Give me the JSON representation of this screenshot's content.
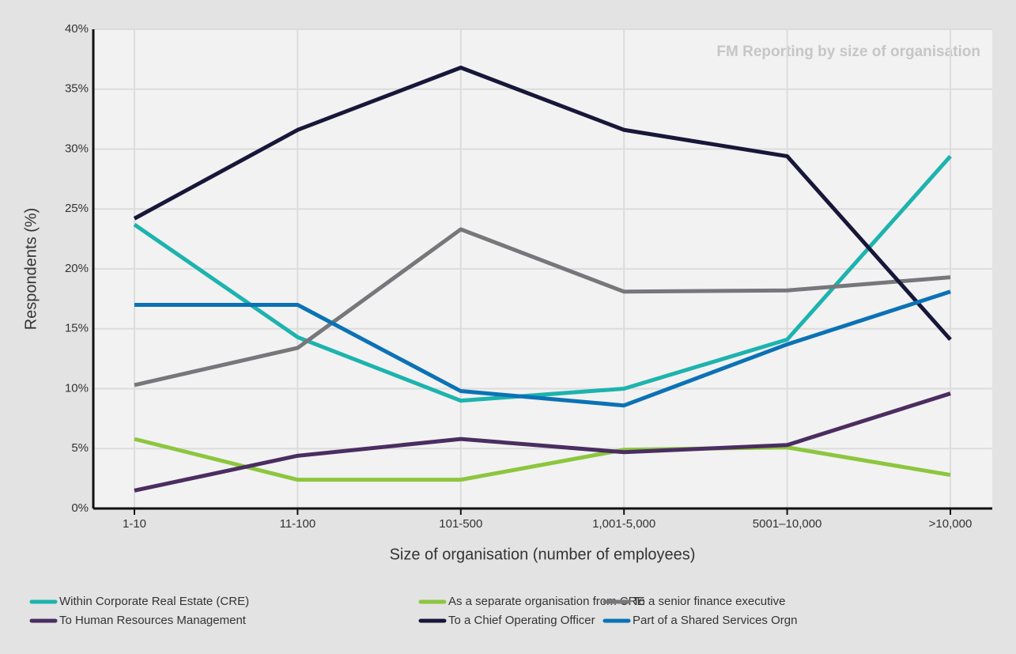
{
  "chart_data": {
    "type": "line",
    "title": "FM Reporting by size of organisation",
    "x_label": "Size of organisation (number of employees)",
    "y_label": "Respondents (%)",
    "categories": [
      "1-10",
      "11-100",
      "101-500",
      "1,001-5,000",
      "5001–10,000",
      ">10,000"
    ],
    "ylim": [
      0,
      40
    ],
    "yticks": [
      {
        "value": 0,
        "label": "0%"
      },
      {
        "value": 5,
        "label": "5%"
      },
      {
        "value": 10,
        "label": "10%"
      },
      {
        "value": 15,
        "label": "15%"
      },
      {
        "value": 20,
        "label": "20%"
      },
      {
        "value": 25,
        "label": "25%"
      },
      {
        "value": 30,
        "label": "30%"
      },
      {
        "value": 35,
        "label": "35%"
      },
      {
        "value": 40,
        "label": "40%"
      }
    ],
    "grid": true,
    "legend": "bottom",
    "series": [
      {
        "name": "Within Corporate Real Estate (CRE)",
        "color": "#1db3ae",
        "values": [
          23.7,
          14.3,
          9.0,
          10.0,
          14.1,
          29.4
        ]
      },
      {
        "name": "As a separate organisation from CRE",
        "color": "#8cc63e",
        "values": [
          5.8,
          2.4,
          2.4,
          4.9,
          5.1,
          2.8
        ]
      },
      {
        "name": "To a senior finance executive",
        "color": "#77777b",
        "values": [
          10.3,
          13.4,
          23.3,
          18.1,
          18.2,
          19.3
        ]
      },
      {
        "name": "To Human Resources Management",
        "color": "#4b2d61",
        "values": [
          1.5,
          4.4,
          5.8,
          4.7,
          5.3,
          9.6
        ]
      },
      {
        "name": "To a Chief Operating Officer",
        "color": "#17173a",
        "values": [
          24.2,
          31.6,
          36.8,
          31.6,
          29.4,
          14.1
        ]
      },
      {
        "name": "Part of a Shared Services Orgn",
        "color": "#0b72b5",
        "values": [
          17.0,
          17.0,
          9.8,
          8.6,
          13.7,
          18.1
        ]
      }
    ]
  }
}
